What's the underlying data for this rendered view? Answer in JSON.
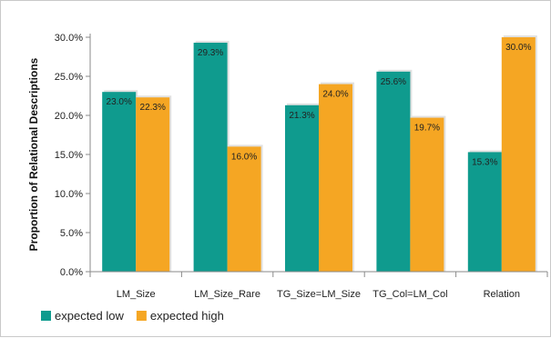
{
  "chart_data": {
    "type": "bar",
    "title": "",
    "xlabel": "",
    "ylabel": "Proportion  of Relational Descriptions",
    "categories": [
      "LM_Size",
      "LM_Size_Rare",
      "TG_Size=LM_Size",
      "TG_Col=LM_Col",
      "Relation"
    ],
    "series": [
      {
        "name": "expected low",
        "color": "#0f9b8e",
        "values": [
          23.0,
          29.3,
          21.3,
          25.6,
          15.3
        ],
        "labels": [
          "23.0%",
          "29.3%",
          "21.3%",
          "25.6%",
          "15.3%"
        ]
      },
      {
        "name": "expected high",
        "color": "#f5a623",
        "values": [
          22.3,
          16.0,
          24.0,
          19.7,
          30.0
        ],
        "labels": [
          "22.3%",
          "16.0%",
          "24.0%",
          "19.7%",
          "30.0%"
        ]
      }
    ],
    "yticks": [
      "0.0%",
      "5.0%",
      "10.0%",
      "15.0%",
      "20.0%",
      "25.0%",
      "30.0%"
    ],
    "ylim": [
      0,
      30
    ],
    "grid": false,
    "legend_position": "bottom-left"
  }
}
